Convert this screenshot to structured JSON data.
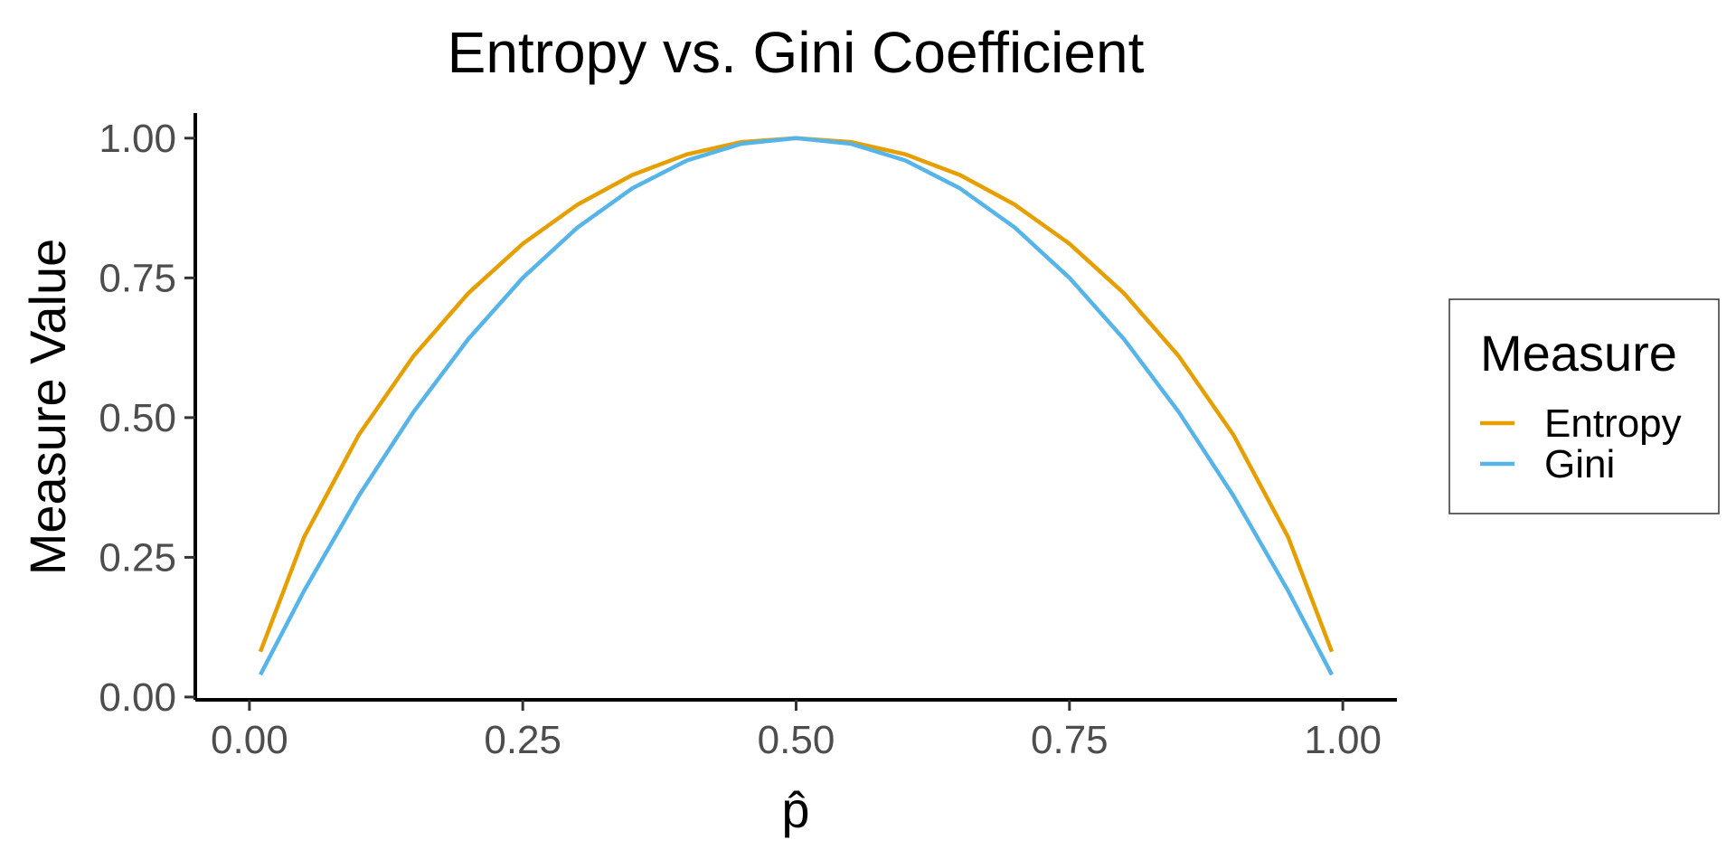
{
  "chart_data": {
    "type": "line",
    "title": "Entropy vs. Gini Coefficient",
    "xlabel": "p̂",
    "ylabel": "Measure Value",
    "xlim": [
      -0.0495,
      1.0495
    ],
    "ylim": [
      -0.005,
      1.045
    ],
    "x_ticks": [
      0,
      0.25,
      0.5,
      0.75,
      1
    ],
    "x_tick_labels": [
      "0.00",
      "0.25",
      "0.50",
      "0.75",
      "1.00"
    ],
    "y_ticks": [
      0,
      0.25,
      0.5,
      0.75,
      1
    ],
    "y_tick_labels": [
      "0.00",
      "0.25",
      "0.50",
      "0.75",
      "1.00"
    ],
    "grid": false,
    "legend": {
      "title": "Measure",
      "position": "right"
    },
    "series": [
      {
        "name": "Entropy",
        "color": "#E69F00",
        "x": [
          0.01,
          0.05,
          0.1,
          0.15,
          0.2,
          0.25,
          0.3,
          0.35,
          0.4,
          0.45,
          0.5,
          0.55,
          0.6,
          0.65,
          0.7,
          0.75,
          0.8,
          0.85,
          0.9,
          0.95,
          0.99
        ],
        "y": [
          0.081,
          0.286,
          0.469,
          0.61,
          0.722,
          0.811,
          0.881,
          0.934,
          0.971,
          0.993,
          1.0,
          0.993,
          0.971,
          0.934,
          0.881,
          0.811,
          0.722,
          0.61,
          0.469,
          0.286,
          0.081
        ]
      },
      {
        "name": "Gini",
        "color": "#56B4E9",
        "x": [
          0.01,
          0.05,
          0.1,
          0.15,
          0.2,
          0.25,
          0.3,
          0.35,
          0.4,
          0.45,
          0.5,
          0.55,
          0.6,
          0.65,
          0.7,
          0.75,
          0.8,
          0.85,
          0.9,
          0.95,
          0.99
        ],
        "y": [
          0.04,
          0.19,
          0.36,
          0.51,
          0.64,
          0.75,
          0.84,
          0.91,
          0.96,
          0.99,
          1.0,
          0.99,
          0.96,
          0.91,
          0.84,
          0.75,
          0.64,
          0.51,
          0.36,
          0.19,
          0.04
        ]
      }
    ]
  }
}
